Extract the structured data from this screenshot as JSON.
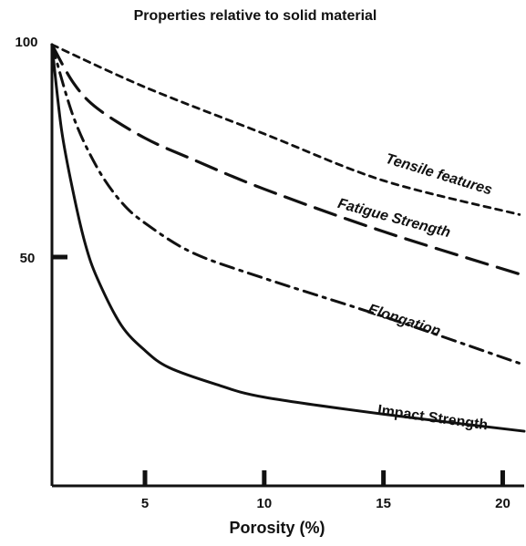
{
  "chart_data": {
    "type": "line",
    "title": "Properties relative to solid material",
    "xlabel": "Porosity (%)",
    "ylabel": "",
    "xlim": [
      1.1,
      20.9
    ],
    "ylim": [
      0,
      100
    ],
    "x_ticks": [
      5,
      10,
      15,
      20
    ],
    "x_tick_labels": [
      "5",
      "10",
      "15",
      "20"
    ],
    "y_ticks": [
      50,
      100
    ],
    "y_tick_labels": [
      "50",
      "100"
    ],
    "grid": false,
    "legend": "none",
    "series": [
      {
        "name": "Tensile features",
        "line_style": "short-dash",
        "x": [
          1.1,
          5,
          10,
          15,
          20.7
        ],
        "y": [
          100,
          90,
          79,
          68,
          60
        ]
      },
      {
        "name": "Fatigue Strength",
        "line_style": "long-dash",
        "x": [
          1.1,
          2,
          3,
          5,
          7,
          10,
          15,
          20.7
        ],
        "y": [
          100,
          91,
          85,
          78,
          73,
          66,
          56,
          46
        ]
      },
      {
        "name": "Elongation",
        "line_style": "dash-dot",
        "x": [
          1.1,
          2,
          3,
          4,
          5,
          7,
          10,
          15,
          20.7
        ],
        "y": [
          100,
          83,
          71,
          63,
          58,
          51,
          45,
          36,
          25
        ]
      },
      {
        "name": "Impact Strength",
        "line_style": "solid",
        "x": [
          1.1,
          1.5,
          2,
          2.5,
          3,
          4,
          5,
          6,
          8,
          10,
          15,
          20.9
        ],
        "y": [
          100,
          80,
          65,
          53,
          45,
          34,
          28,
          24,
          20,
          17,
          13,
          9
        ]
      }
    ]
  }
}
